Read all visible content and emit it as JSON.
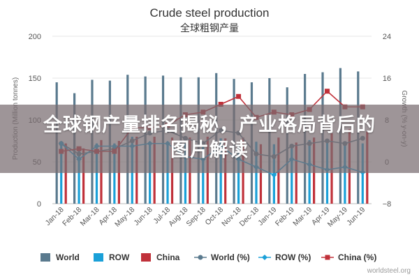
{
  "chart_data": {
    "type": "bar",
    "title": "Crude steel production",
    "subtitle": "全球粗钢产量",
    "ylabel_left": "Production (Million tonnes)",
    "ylabel_right": "Growth (% y-on-y)",
    "ylim_left": [
      0,
      200
    ],
    "ylim_right": [
      -8,
      24
    ],
    "yticks_left": [
      "0",
      "50",
      "100",
      "150",
      "200"
    ],
    "yticks_right": [
      "−8",
      "0",
      "8",
      "16",
      "24"
    ],
    "grid": true,
    "legend_position": "bottom",
    "categories": [
      "Jan-18",
      "Feb-18",
      "Mar-18",
      "Apr-18",
      "May-18",
      "Jun-18",
      "Jul-18",
      "Aug-18",
      "Sep-18",
      "Oct-18",
      "Nov-18",
      "Dec-18",
      "Jan-19",
      "Feb-19",
      "Mar-19",
      "Apr-19",
      "May-19",
      "Jun-19"
    ],
    "bar_series": [
      {
        "name": "World",
        "color": "#5a7a8e",
        "values": [
          145,
          132,
          148,
          147,
          154,
          152,
          153,
          151,
          151,
          156,
          149,
          145,
          150,
          139,
          155,
          157,
          162,
          158
        ]
      },
      {
        "name": "ROW",
        "color": "#1aa0d8",
        "values": [
          73,
          66,
          72,
          72,
          80,
          71,
          74,
          72,
          71,
          78,
          70,
          74,
          71,
          66,
          76,
          73,
          73,
          72
        ]
      },
      {
        "name": "China",
        "color": "#c0313a",
        "values": [
          72,
          66,
          76,
          75,
          80,
          80,
          79,
          79,
          80,
          78,
          79,
          71,
          79,
          73,
          79,
          84,
          89,
          86
        ]
      }
    ],
    "line_series": [
      {
        "name": "World (%)",
        "color": "#5a7a8e",
        "values": [
          3.5,
          1.5,
          2.0,
          2.5,
          4.0,
          5.5,
          6.0,
          4.5,
          3.5,
          6.0,
          5.5,
          1.5,
          1.0,
          3.0,
          3.5,
          4.0,
          3.5,
          4.5
        ]
      },
      {
        "name": "ROW (%)",
        "color": "#1aa0d8",
        "values": [
          3.5,
          0.5,
          3.0,
          3.0,
          3.0,
          3.5,
          3.5,
          1.0,
          0.5,
          3.0,
          0.5,
          -1.0,
          -2.5,
          0.5,
          -0.5,
          -1.5,
          -1.0,
          -2.0
        ]
      },
      {
        "name": "China (%)",
        "color": "#c0313a",
        "values": [
          2.0,
          2.5,
          2.0,
          2.0,
          6.5,
          6.5,
          7.0,
          9.0,
          9.5,
          11.0,
          12.5,
          8.5,
          9.5,
          9.0,
          10.0,
          13.5,
          10.5,
          10.5
        ]
      }
    ]
  },
  "legend": [
    {
      "label": "World",
      "kind": "bar",
      "color": "#5a7a8e"
    },
    {
      "label": "ROW",
      "kind": "bar",
      "color": "#1aa0d8"
    },
    {
      "label": "China",
      "kind": "bar",
      "color": "#c0313a"
    },
    {
      "label": "World (%)",
      "kind": "line",
      "color": "#5a7a8e"
    },
    {
      "label": "ROW (%)",
      "kind": "line",
      "color": "#1aa0d8"
    },
    {
      "label": "China (%)",
      "kind": "line",
      "color": "#c0313a"
    }
  ],
  "overlay": {
    "line1": "全球钢产量排名揭秘，产业格局背后的",
    "line2": "图片解读"
  },
  "watermark": "worldsteel.org"
}
